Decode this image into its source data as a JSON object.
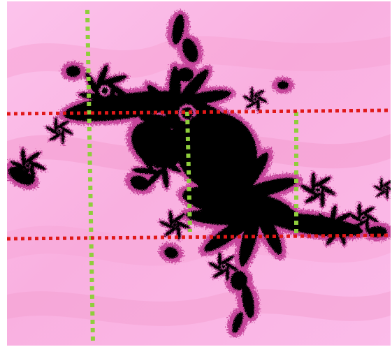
{
  "image": {
    "subject": "fractal-render",
    "colors": {
      "background_light": "#fbb6e8",
      "background_mid": "#f6a6d6",
      "band_dark": "#f090c4",
      "fractal_edge": "#c7449b",
      "fractal_core": "#000000",
      "guide_vertical": "#8fce3c",
      "guide_horizontal": "#e01818"
    },
    "guides": {
      "vertical_count": 3,
      "horizontal_count": 2,
      "style": "dotted"
    }
  }
}
